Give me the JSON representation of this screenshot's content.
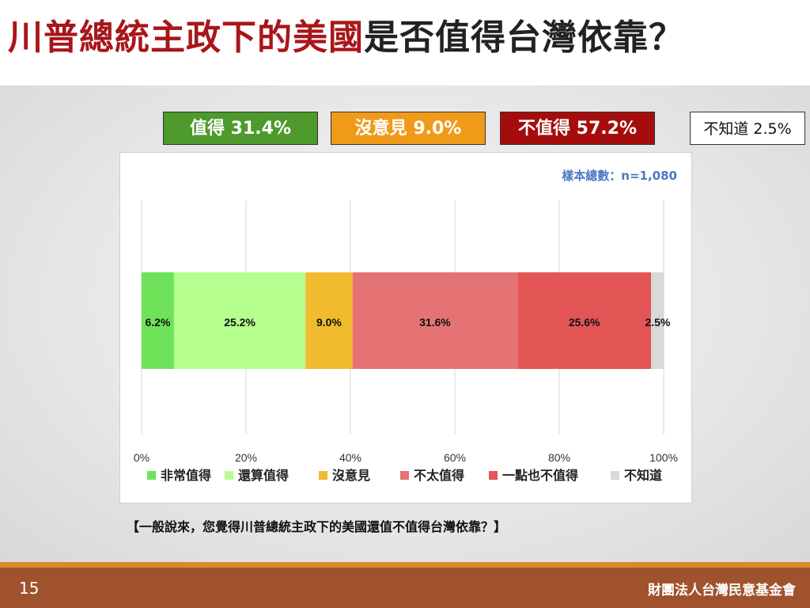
{
  "title": {
    "part_red": "川普總統主政下的美國",
    "part_dark": "是否值得台灣依靠？"
  },
  "summary": {
    "worth": "值得 31.4%",
    "neutral": "沒意見 9.0%",
    "not_worth": "不值得 57.2%",
    "unknown": "不知道 2.5%"
  },
  "sample_note": "樣本總數：n=1,080",
  "question": "【一般說來，您覺得川普總統主政下的美國還值不值得台灣依靠？】",
  "footer": {
    "page_number": "15",
    "org": "財團法人台灣民意基金會"
  },
  "chart_data": {
    "type": "bar",
    "orientation": "horizontal-stacked",
    "xlim": [
      0,
      100
    ],
    "x_ticks": [
      "0%",
      "20%",
      "40%",
      "60%",
      "80%",
      "100%"
    ],
    "grid": true,
    "legend_position": "bottom",
    "series": [
      {
        "name": "非常值得",
        "value": 6.2,
        "label": "6.2%",
        "color": "#6ee35a"
      },
      {
        "name": "還算值得",
        "value": 25.2,
        "label": "25.2%",
        "color": "#b4ff8e"
      },
      {
        "name": "沒意見",
        "value": 9.0,
        "label": "9.0%",
        "color": "#f0bc2e"
      },
      {
        "name": "不太值得",
        "value": 31.6,
        "label": "31.6%",
        "color": "#e67373"
      },
      {
        "name": "一點也不值得",
        "value": 25.6,
        "label": "25.6%",
        "color": "#e45555"
      },
      {
        "name": "不知道",
        "value": 2.5,
        "label": "2.5%",
        "color": "#d9d9d9"
      }
    ]
  }
}
